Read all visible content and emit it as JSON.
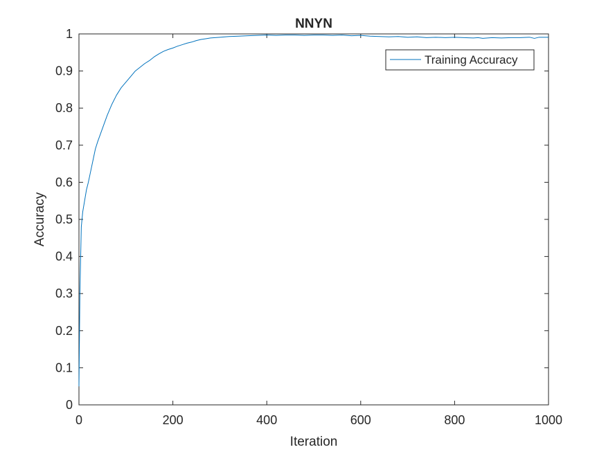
{
  "chart_data": {
    "type": "line",
    "title": "NNYN",
    "xlabel": "Iteration",
    "ylabel": "Accuracy",
    "xlim": [
      0,
      1000
    ],
    "ylim": [
      0,
      1
    ],
    "xticks": [
      0,
      200,
      400,
      600,
      800,
      1000
    ],
    "xtick_labels": [
      "0",
      "200",
      "400",
      "600",
      "800",
      "1000"
    ],
    "yticks": [
      0,
      0.1,
      0.2,
      0.3,
      0.4,
      0.5,
      0.6,
      0.7,
      0.8,
      0.9,
      1
    ],
    "ytick_labels": [
      "0",
      "0.1",
      "0.2",
      "0.3",
      "0.4",
      "0.5",
      "0.6",
      "0.7",
      "0.8",
      "0.9",
      "1"
    ],
    "grid": false,
    "legend_position": "top-right",
    "series": [
      {
        "name": "Training Accuracy",
        "color": "#0072BD",
        "x": [
          0,
          2,
          5,
          8,
          12,
          16,
          20,
          25,
          30,
          35,
          40,
          50,
          60,
          70,
          80,
          90,
          100,
          110,
          120,
          130,
          140,
          150,
          160,
          170,
          180,
          190,
          200,
          210,
          220,
          230,
          240,
          250,
          260,
          270,
          280,
          290,
          300,
          320,
          340,
          360,
          380,
          400,
          420,
          440,
          460,
          480,
          500,
          520,
          540,
          560,
          580,
          600,
          620,
          640,
          660,
          680,
          700,
          720,
          740,
          760,
          780,
          800,
          820,
          840,
          850,
          860,
          880,
          900,
          920,
          940,
          960,
          970,
          980,
          1000
        ],
        "values": [
          0.05,
          0.3,
          0.48,
          0.52,
          0.55,
          0.58,
          0.6,
          0.63,
          0.66,
          0.69,
          0.71,
          0.745,
          0.78,
          0.81,
          0.835,
          0.855,
          0.87,
          0.885,
          0.9,
          0.91,
          0.92,
          0.928,
          0.938,
          0.946,
          0.953,
          0.958,
          0.962,
          0.967,
          0.971,
          0.975,
          0.978,
          0.982,
          0.985,
          0.987,
          0.989,
          0.99,
          0.991,
          0.993,
          0.994,
          0.995,
          0.996,
          0.997,
          0.996,
          0.997,
          0.997,
          0.996,
          0.997,
          0.997,
          0.996,
          0.997,
          0.995,
          0.996,
          0.994,
          0.993,
          0.992,
          0.993,
          0.991,
          0.992,
          0.99,
          0.991,
          0.99,
          0.991,
          0.99,
          0.989,
          0.99,
          0.988,
          0.99,
          0.989,
          0.99,
          0.99,
          0.991,
          0.988,
          0.991,
          0.991
        ]
      }
    ]
  }
}
